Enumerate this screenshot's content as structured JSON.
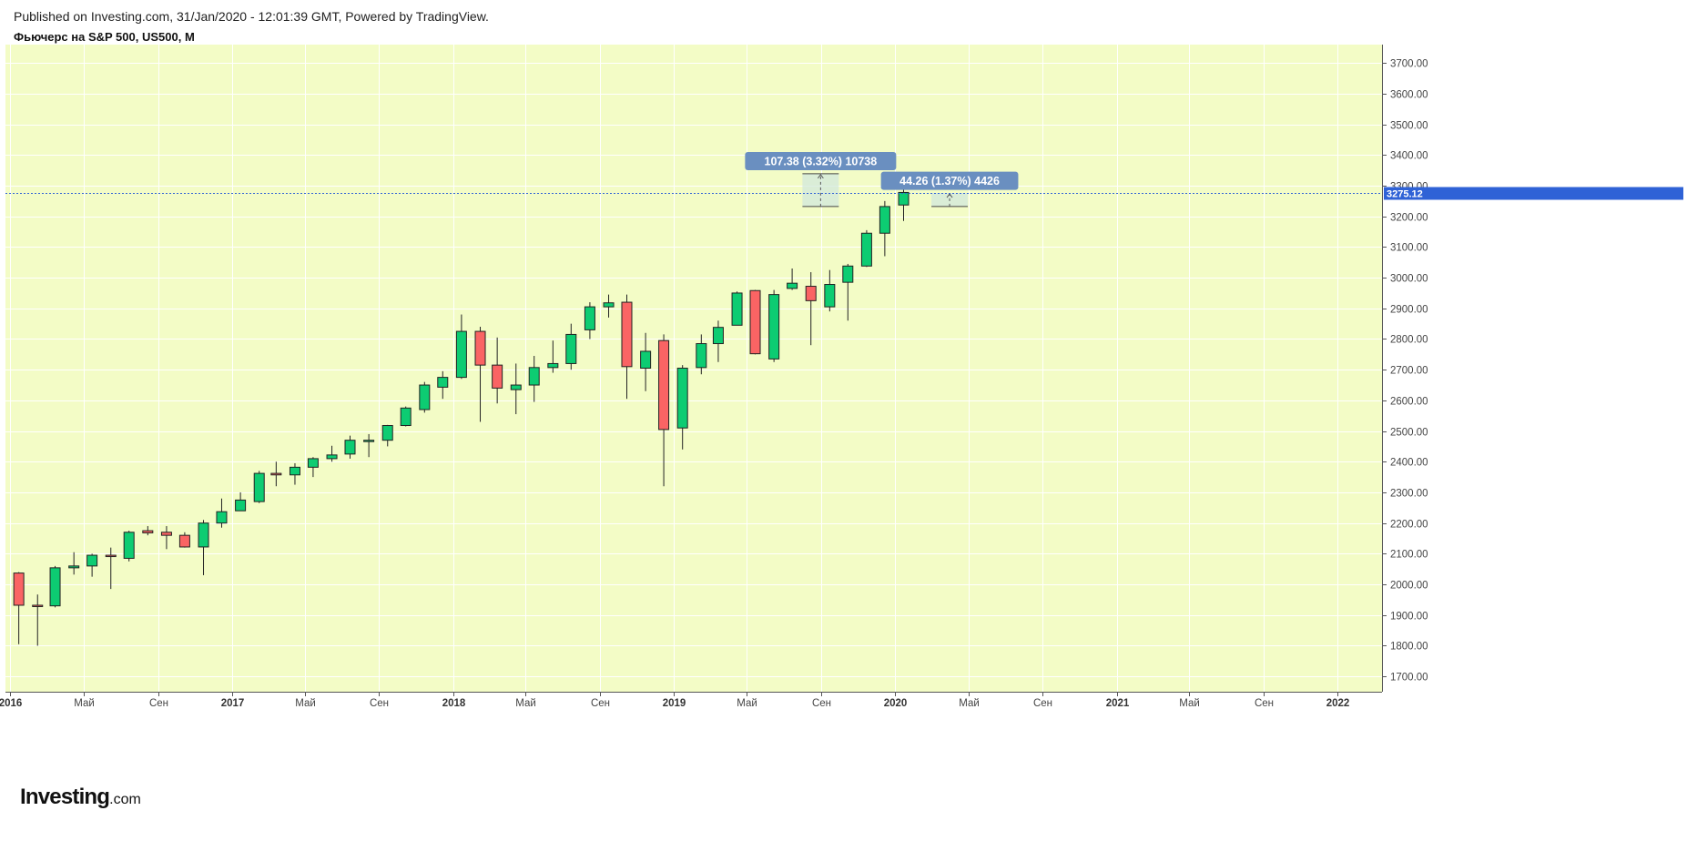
{
  "header": {
    "published": "Published on Investing.com, 31/Jan/2020 - 12:01:39 GMT, Powered by TradingView.",
    "symbol": "Фьючерс на S&P 500, US500, M"
  },
  "logo": {
    "main": "Investing",
    "sub": ".com"
  },
  "colors": {
    "background": "#f3fcc6",
    "up": "#0dcc72",
    "down": "#fa6464",
    "candle_border": "#222222",
    "price_line": "#2f62d6",
    "measure_fill": "#d2e8dc",
    "measure_label": "#6a8fc0"
  },
  "chart_data": {
    "type": "candlestick",
    "period": "M",
    "ylim": [
      1650,
      3760
    ],
    "yticks": [
      1700,
      1800,
      1900,
      2000,
      2100,
      2200,
      2300,
      2400,
      2500,
      2600,
      2700,
      2800,
      2900,
      3000,
      3100,
      3200,
      3300,
      3400,
      3500,
      3600,
      3700
    ],
    "ytick_labels": [
      "1700.00",
      "1800.00",
      "1900.00",
      "2000.00",
      "2100.00",
      "2200.00",
      "2300.00",
      "2400.00",
      "2500.00",
      "2600.00",
      "2700.00",
      "2800.00",
      "2900.00",
      "3000.00",
      "3100.00",
      "3200.00",
      "3300.00",
      "3400.00",
      "3500.00",
      "3600.00",
      "3700.00"
    ],
    "xlim": [
      "2015-12-24",
      "2022-03-15"
    ],
    "xticks": [
      {
        "date": "2016-01-01",
        "label": "2016",
        "year": true
      },
      {
        "date": "2016-05-01",
        "label": "Май",
        "year": false
      },
      {
        "date": "2016-09-01",
        "label": "Сен",
        "year": false
      },
      {
        "date": "2017-01-01",
        "label": "2017",
        "year": true
      },
      {
        "date": "2017-05-01",
        "label": "Май",
        "year": false
      },
      {
        "date": "2017-09-01",
        "label": "Сен",
        "year": false
      },
      {
        "date": "2018-01-01",
        "label": "2018",
        "year": true
      },
      {
        "date": "2018-05-01",
        "label": "Май",
        "year": false
      },
      {
        "date": "2018-09-01",
        "label": "Сен",
        "year": false
      },
      {
        "date": "2019-01-01",
        "label": "2019",
        "year": true
      },
      {
        "date": "2019-05-01",
        "label": "Май",
        "year": false
      },
      {
        "date": "2019-09-01",
        "label": "Сен",
        "year": false
      },
      {
        "date": "2020-01-01",
        "label": "2020",
        "year": true
      },
      {
        "date": "2020-05-01",
        "label": "Май",
        "year": false
      },
      {
        "date": "2020-09-01",
        "label": "Сен",
        "year": false
      },
      {
        "date": "2021-01-01",
        "label": "2021",
        "year": true
      },
      {
        "date": "2021-05-01",
        "label": "Май",
        "year": false
      },
      {
        "date": "2021-09-01",
        "label": "Сен",
        "year": false
      },
      {
        "date": "2022-01-01",
        "label": "2022",
        "year": true
      }
    ],
    "candles": [
      {
        "date": "2016-01",
        "open": 2037,
        "high": 2040,
        "low": 1805,
        "close": 1932
      },
      {
        "date": "2016-02",
        "open": 1932,
        "high": 1967,
        "low": 1800,
        "close": 1930
      },
      {
        "date": "2016-03",
        "open": 1930,
        "high": 2060,
        "low": 1925,
        "close": 2054
      },
      {
        "date": "2016-04",
        "open": 2054,
        "high": 2105,
        "low": 2032,
        "close": 2060
      },
      {
        "date": "2016-05",
        "open": 2060,
        "high": 2100,
        "low": 2025,
        "close": 2095
      },
      {
        "date": "2016-06",
        "open": 2095,
        "high": 2120,
        "low": 1985,
        "close": 2092
      },
      {
        "date": "2016-07",
        "open": 2085,
        "high": 2175,
        "low": 2075,
        "close": 2170
      },
      {
        "date": "2016-08",
        "open": 2175,
        "high": 2190,
        "low": 2160,
        "close": 2168
      },
      {
        "date": "2016-09",
        "open": 2170,
        "high": 2190,
        "low": 2115,
        "close": 2160
      },
      {
        "date": "2016-10",
        "open": 2160,
        "high": 2170,
        "low": 2120,
        "close": 2122
      },
      {
        "date": "2016-11",
        "open": 2122,
        "high": 2210,
        "low": 2030,
        "close": 2200
      },
      {
        "date": "2016-12",
        "open": 2200,
        "high": 2280,
        "low": 2185,
        "close": 2237
      },
      {
        "date": "2017-01",
        "open": 2240,
        "high": 2300,
        "low": 2240,
        "close": 2275
      },
      {
        "date": "2017-02",
        "open": 2270,
        "high": 2370,
        "low": 2265,
        "close": 2362
      },
      {
        "date": "2017-03",
        "open": 2362,
        "high": 2400,
        "low": 2320,
        "close": 2357
      },
      {
        "date": "2017-04",
        "open": 2357,
        "high": 2395,
        "low": 2325,
        "close": 2382
      },
      {
        "date": "2017-05",
        "open": 2382,
        "high": 2415,
        "low": 2350,
        "close": 2410
      },
      {
        "date": "2017-06",
        "open": 2410,
        "high": 2452,
        "low": 2400,
        "close": 2422
      },
      {
        "date": "2017-07",
        "open": 2425,
        "high": 2485,
        "low": 2410,
        "close": 2470
      },
      {
        "date": "2017-08",
        "open": 2468,
        "high": 2490,
        "low": 2415,
        "close": 2470
      },
      {
        "date": "2017-09",
        "open": 2470,
        "high": 2520,
        "low": 2450,
        "close": 2518
      },
      {
        "date": "2017-10",
        "open": 2518,
        "high": 2580,
        "low": 2515,
        "close": 2575
      },
      {
        "date": "2017-11",
        "open": 2570,
        "high": 2660,
        "low": 2560,
        "close": 2650
      },
      {
        "date": "2017-12",
        "open": 2643,
        "high": 2695,
        "low": 2605,
        "close": 2675
      },
      {
        "date": "2018-01",
        "open": 2675,
        "high": 2880,
        "low": 2670,
        "close": 2825
      },
      {
        "date": "2018-02",
        "open": 2825,
        "high": 2840,
        "low": 2530,
        "close": 2715
      },
      {
        "date": "2018-03",
        "open": 2715,
        "high": 2805,
        "low": 2590,
        "close": 2640
      },
      {
        "date": "2018-04",
        "open": 2635,
        "high": 2720,
        "low": 2555,
        "close": 2650
      },
      {
        "date": "2018-05",
        "open": 2650,
        "high": 2745,
        "low": 2595,
        "close": 2707
      },
      {
        "date": "2018-06",
        "open": 2707,
        "high": 2795,
        "low": 2690,
        "close": 2720
      },
      {
        "date": "2018-07",
        "open": 2720,
        "high": 2850,
        "low": 2700,
        "close": 2815
      },
      {
        "date": "2018-08",
        "open": 2830,
        "high": 2920,
        "low": 2800,
        "close": 2905
      },
      {
        "date": "2018-09",
        "open": 2905,
        "high": 2945,
        "low": 2870,
        "close": 2918
      },
      {
        "date": "2018-10",
        "open": 2920,
        "high": 2945,
        "low": 2605,
        "close": 2710
      },
      {
        "date": "2018-11",
        "open": 2705,
        "high": 2820,
        "low": 2630,
        "close": 2760
      },
      {
        "date": "2018-12",
        "open": 2795,
        "high": 2815,
        "low": 2320,
        "close": 2505
      },
      {
        "date": "2019-01",
        "open": 2510,
        "high": 2715,
        "low": 2440,
        "close": 2705
      },
      {
        "date": "2019-02",
        "open": 2707,
        "high": 2815,
        "low": 2685,
        "close": 2785
      },
      {
        "date": "2019-03",
        "open": 2785,
        "high": 2860,
        "low": 2725,
        "close": 2838
      },
      {
        "date": "2019-04",
        "open": 2845,
        "high": 2955,
        "low": 2845,
        "close": 2950
      },
      {
        "date": "2019-05",
        "open": 2958,
        "high": 2960,
        "low": 2750,
        "close": 2752
      },
      {
        "date": "2019-06",
        "open": 2735,
        "high": 2960,
        "low": 2725,
        "close": 2945
      },
      {
        "date": "2019-07",
        "open": 2965,
        "high": 3030,
        "low": 2960,
        "close": 2982
      },
      {
        "date": "2019-08",
        "open": 2972,
        "high": 3018,
        "low": 2780,
        "close": 2925
      },
      {
        "date": "2019-09",
        "open": 2905,
        "high": 3025,
        "low": 2890,
        "close": 2978
      },
      {
        "date": "2019-10",
        "open": 2985,
        "high": 3045,
        "low": 2860,
        "close": 3038
      },
      {
        "date": "2019-11",
        "open": 3038,
        "high": 3155,
        "low": 3035,
        "close": 3145
      },
      {
        "date": "2019-12",
        "open": 3145,
        "high": 3250,
        "low": 3070,
        "close": 3232
      },
      {
        "date": "2020-01",
        "open": 3237,
        "high": 3340,
        "low": 3185,
        "close": 3278
      }
    ],
    "current_price": 3275.12,
    "current_price_label": "3275.12",
    "measurements": [
      {
        "label": "107.38 (3.32%) 10738",
        "from_date": "2019-08-01",
        "to_date": "2019-09-30",
        "from_price": 3232,
        "to_price": 3339,
        "label_price": 3380
      },
      {
        "label": "44.26 (1.37%) 4426",
        "from_date": "2020-03-01",
        "to_date": "2020-04-30",
        "from_price": 3232,
        "to_price": 3276,
        "label_price": 3316
      }
    ]
  }
}
